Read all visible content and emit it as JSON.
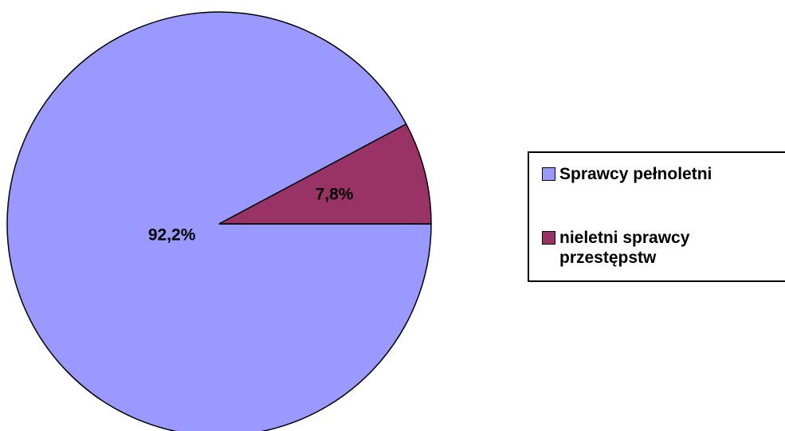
{
  "chart_data": {
    "type": "pie",
    "categories": [
      "Sprawcy pełnoletni",
      "nieletni sprawcy przestępstw"
    ],
    "values": [
      92.2,
      7.8
    ],
    "value_labels": [
      "92,2%",
      "7,8%"
    ],
    "colors": [
      "#9999ff",
      "#993366"
    ],
    "legend": "right"
  }
}
